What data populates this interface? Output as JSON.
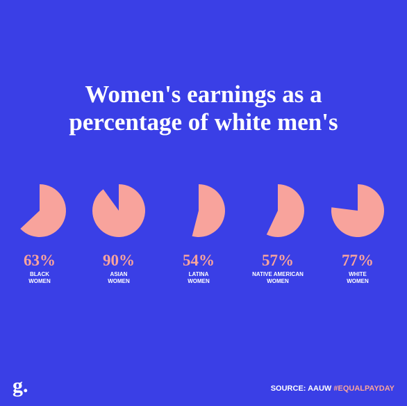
{
  "chart_data": {
    "type": "pie",
    "title": "Women's earnings as a\npercentage of white men's",
    "categories": [
      "BLACK\nWOMEN",
      "ASIAN\nWOMEN",
      "LATINA\nWOMEN",
      "NATIVE AMERICAN\nWOMEN",
      "WHITE\nWOMEN"
    ],
    "values": [
      63,
      90,
      54,
      57,
      77
    ],
    "value_labels": [
      "63%",
      "90%",
      "54%",
      "57%",
      "77%"
    ],
    "color": "#f8a39c",
    "background": "#3a3fe6",
    "source": "SOURCE: AAUW",
    "hashtag": "#EQUALPAYDAY",
    "logo": "g."
  }
}
